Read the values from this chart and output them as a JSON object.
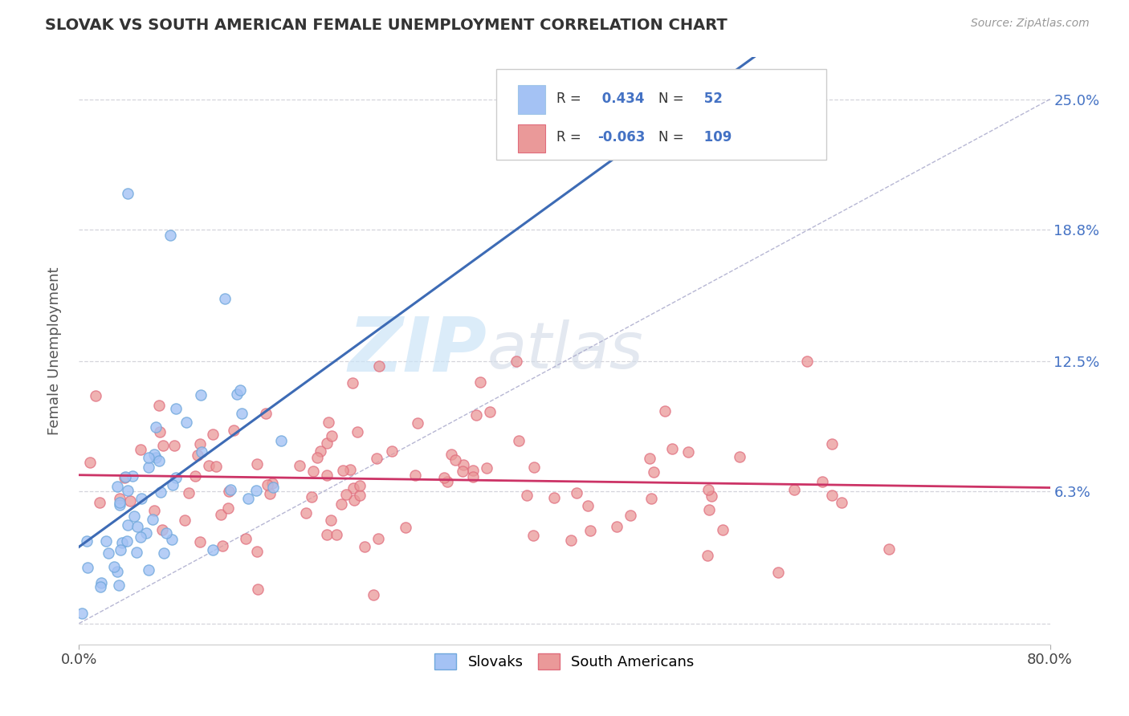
{
  "title": "SLOVAK VS SOUTH AMERICAN FEMALE UNEMPLOYMENT CORRELATION CHART",
  "source_text": "Source: ZipAtlas.com",
  "ylabel": "Female Unemployment",
  "xlim": [
    0.0,
    0.8
  ],
  "ylim": [
    -0.01,
    0.27
  ],
  "plot_ylim": [
    0.0,
    0.25
  ],
  "ytick_vals": [
    0.0,
    0.063,
    0.125,
    0.188,
    0.25
  ],
  "ytick_labels": [
    "",
    "6.3%",
    "12.5%",
    "18.8%",
    "25.0%"
  ],
  "xticks": [
    0.0,
    0.8
  ],
  "xtick_labels": [
    "0.0%",
    "80.0%"
  ],
  "slovak_R": 0.434,
  "slovak_N": 52,
  "south_american_R": -0.063,
  "south_american_N": 109,
  "blue_dot_color": "#a4c2f4",
  "pink_dot_color": "#ea9999",
  "blue_dot_edge": "#6fa8dc",
  "pink_dot_edge": "#e06c7c",
  "blue_line_color": "#3d6bb5",
  "pink_line_color": "#cc3366",
  "ref_line_color": "#aaaacc",
  "legend_label_slovak": "Slovaks",
  "legend_label_sa": "South Americans",
  "background_color": "#ffffff",
  "watermark_zip_color": "#cce0f5",
  "watermark_atlas_color": "#d0d8e8",
  "grid_color": "#d0d0d8",
  "title_color": "#333333",
  "source_color": "#999999",
  "right_tick_color": "#4472c4",
  "legend_r_color": "#333333",
  "legend_n_color": "#4472c4",
  "legend_val_color": "#4472c4"
}
